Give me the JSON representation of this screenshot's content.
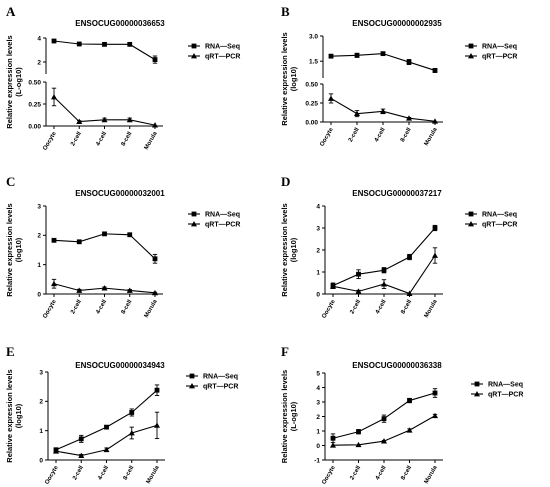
{
  "chart_data": [
    {
      "panel": "A",
      "type": "line",
      "title": "ENSOCUG00000036653",
      "ylabel": "Relative expression levels (L-og10)",
      "categories": [
        "Oocyte",
        "2-cell",
        "4-cell",
        "8-cell",
        "Morula"
      ],
      "axis_break": true,
      "yticks_lower": [
        "0.00",
        "0.25",
        "0.50"
      ],
      "yticks_upper": [
        "2",
        "4"
      ],
      "ylim_lower": [
        0,
        0.5
      ],
      "ylim_upper": [
        1,
        4
      ],
      "series": [
        {
          "name": "RNA—Seq",
          "marker": "square",
          "values": [
            3.75,
            3.5,
            3.47,
            3.47,
            2.2
          ],
          "err": [
            0.08,
            0.05,
            0.05,
            0.05,
            0.3
          ]
        },
        {
          "name": "qRT—PCR",
          "marker": "triangle",
          "values": [
            0.33,
            0.05,
            0.07,
            0.07,
            0.01
          ],
          "err": [
            0.1,
            0.01,
            0.02,
            0.02,
            0.005
          ]
        }
      ]
    },
    {
      "panel": "B",
      "type": "line",
      "title": "ENSOCUG00000002935",
      "ylabel": "Relative expression levels (log10)",
      "categories": [
        "Oocyte",
        "2-cell",
        "4-cell",
        "8-cell",
        "Morula"
      ],
      "axis_break": true,
      "yticks_lower": [
        "0.00",
        "0.25",
        "0.50"
      ],
      "yticks_upper": [
        "1.5",
        "3.0"
      ],
      "ylim_lower": [
        0,
        0.5
      ],
      "ylim_upper": [
        0.5,
        3.0
      ],
      "series": [
        {
          "name": "RNA—Seq",
          "marker": "square",
          "values": [
            1.8,
            1.85,
            1.95,
            1.45,
            0.95
          ],
          "err": [
            0.08,
            0.12,
            0.08,
            0.15,
            0.12
          ]
        },
        {
          "name": "qRT—PCR",
          "marker": "triangle",
          "values": [
            0.31,
            0.11,
            0.14,
            0.05,
            0.01
          ],
          "err": [
            0.06,
            0.04,
            0.03,
            0.01,
            0.005
          ]
        }
      ]
    },
    {
      "panel": "C",
      "type": "line",
      "title": "ENSOCUG00000032001",
      "ylabel": "Relative expression levels (log10)",
      "categories": [
        "Oocyte",
        "2-cell",
        "4-cell",
        "8-cell",
        "Morula"
      ],
      "yticks": [
        "0",
        "1",
        "2",
        "3"
      ],
      "ylim": [
        0,
        3
      ],
      "series": [
        {
          "name": "RNA—Seq",
          "marker": "square",
          "values": [
            1.83,
            1.78,
            2.05,
            2.02,
            1.2
          ],
          "err": [
            0.05,
            0.05,
            0.03,
            0.04,
            0.15
          ]
        },
        {
          "name": "qRT—PCR",
          "marker": "triangle",
          "values": [
            0.35,
            0.12,
            0.2,
            0.12,
            0.04
          ],
          "err": [
            0.15,
            0.04,
            0.04,
            0.03,
            0.02
          ]
        }
      ]
    },
    {
      "panel": "D",
      "type": "line",
      "title": "ENSOCUG00000037217",
      "ylabel": "Relative expression levels (log10)",
      "categories": [
        "Oocyte",
        "2-cell",
        "4-cell",
        "8-cell",
        "Morula"
      ],
      "yticks": [
        "0",
        "1",
        "2",
        "3",
        "4"
      ],
      "ylim": [
        0,
        4
      ],
      "series": [
        {
          "name": "RNA—Seq",
          "marker": "square",
          "values": [
            0.38,
            0.9,
            1.08,
            1.68,
            3.0
          ],
          "err": [
            0.12,
            0.2,
            0.12,
            0.12,
            0.12
          ]
        },
        {
          "name": "qRT—PCR",
          "marker": "triangle",
          "values": [
            0.35,
            0.12,
            0.45,
            0.02,
            1.75
          ],
          "err": [
            0.1,
            0.05,
            0.2,
            0.01,
            0.35
          ]
        }
      ]
    },
    {
      "panel": "E",
      "type": "line",
      "title": "ENSOCUG00000034943",
      "ylabel": "Relative expression levels (log10)",
      "categories": [
        "Oocyte",
        "2-cell",
        "4-cell",
        "8-cell",
        "Morula"
      ],
      "yticks": [
        "0",
        "1",
        "2",
        "3"
      ],
      "ylim": [
        0,
        3
      ],
      "series": [
        {
          "name": "RNA—Seq",
          "marker": "square",
          "values": [
            0.35,
            0.72,
            1.12,
            1.62,
            2.38
          ],
          "err": [
            0.06,
            0.12,
            0.05,
            0.12,
            0.18
          ]
        },
        {
          "name": "qRT—PCR",
          "marker": "triangle",
          "values": [
            0.3,
            0.15,
            0.35,
            0.92,
            1.18
          ],
          "err": [
            0.05,
            0.04,
            0.06,
            0.2,
            0.45
          ]
        }
      ]
    },
    {
      "panel": "F",
      "type": "line",
      "title": "ENSOCUG00000036338",
      "ylabel": "Relative expression levels (L-og10)",
      "categories": [
        "Oocyte",
        "2-cell",
        "4-cell",
        "8-cell",
        "Morula"
      ],
      "yticks": [
        "-1",
        "0",
        "1",
        "2",
        "3",
        "4",
        "5"
      ],
      "ylim": [
        -1,
        5
      ],
      "series": [
        {
          "name": "RNA—Seq",
          "marker": "square",
          "values": [
            0.5,
            0.95,
            1.85,
            3.1,
            3.62
          ],
          "err": [
            0.3,
            0.15,
            0.25,
            0.15,
            0.3
          ]
        },
        {
          "name": "qRT—PCR",
          "marker": "triangle",
          "values": [
            0.02,
            0.05,
            0.3,
            1.05,
            2.05
          ],
          "err": [
            0.02,
            0.02,
            0.05,
            0.1,
            0.1
          ]
        }
      ]
    }
  ]
}
